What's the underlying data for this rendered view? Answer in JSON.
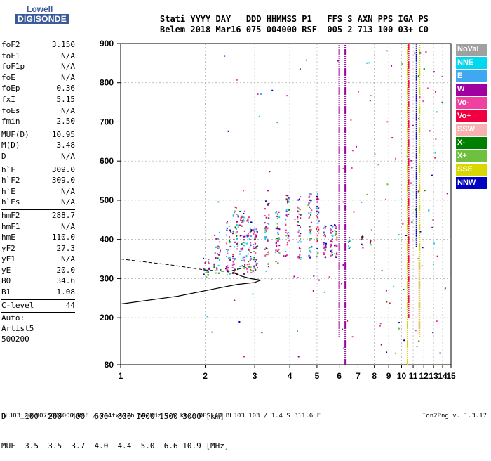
{
  "logo": {
    "top": "Lowell",
    "bottom": "DIGISONDE"
  },
  "header": {
    "line1": "Stati YYYY DAY   DDD HHMMSS P1   FFS S AXN PPS IGA PS",
    "line2": "Belem 2018 Mar16 075 004000 RSF  005 2 713 100 03+ C0"
  },
  "params": {
    "group1": [
      {
        "k": "foF2",
        "v": "3.150"
      },
      {
        "k": "foF1",
        "v": "N/A"
      },
      {
        "k": "foF1p",
        "v": "N/A"
      },
      {
        "k": "foE",
        "v": "N/A"
      },
      {
        "k": "foEp",
        "v": "0.36"
      },
      {
        "k": "fxI",
        "v": "5.15"
      },
      {
        "k": "foEs",
        "v": "N/A"
      },
      {
        "k": "fmin",
        "v": "2.50"
      }
    ],
    "group2": [
      {
        "k": "MUF(D)",
        "v": "10.95"
      },
      {
        "k": "M(D)",
        "v": "3.48"
      },
      {
        "k": "D",
        "v": "N/A"
      }
    ],
    "group3": [
      {
        "k": "h`F",
        "v": "309.0"
      },
      {
        "k": "h`F2",
        "v": "309.0"
      },
      {
        "k": "h`E",
        "v": "N/A"
      },
      {
        "k": "h`Es",
        "v": "N/A"
      }
    ],
    "group4": [
      {
        "k": "hmF2",
        "v": "288.7"
      },
      {
        "k": "hmF1",
        "v": "N/A"
      },
      {
        "k": "hmE",
        "v": "110.0"
      },
      {
        "k": "yF2",
        "v": "27.3"
      },
      {
        "k": "yF1",
        "v": "N/A"
      },
      {
        "k": "yE",
        "v": "20.0"
      },
      {
        "k": "B0",
        "v": "34.6"
      },
      {
        "k": "B1",
        "v": "1.08"
      }
    ],
    "group5": [
      {
        "k": "C-level",
        "v": "44"
      }
    ],
    "extra": [
      "Auto:",
      "Artist5",
      "500200"
    ]
  },
  "dtable": {
    "row1": "D    100  200  400  600  800 1000 1500 3000 [km]",
    "row2": "MUF  3.5  3.5  3.7  4.0  4.4  5.0  6.6 10.9 [MHz]"
  },
  "footer": "BLJ03_2018075004000.RSF / 284fx512h 50 kHz 2.5 km / DPS-4D BLJ03 103 / 1.4 S 311.6 E",
  "version": "Ion2Png v. 1.3.17",
  "legend": [
    {
      "label": "NoVal",
      "color": "#a0a0a0"
    },
    {
      "label": "NNE",
      "color": "#00d8f0"
    },
    {
      "label": "E",
      "color": "#40a8f0"
    },
    {
      "label": "W",
      "color": "#a000a0"
    },
    {
      "label": "Vo-",
      "color": "#f040a0"
    },
    {
      "label": "Vo+",
      "color": "#f00040"
    },
    {
      "label": "SSW",
      "color": "#f8b0b0"
    },
    {
      "label": "X-",
      "color": "#008000"
    },
    {
      "label": "X+",
      "color": "#70c040"
    },
    {
      "label": "SSE",
      "color": "#d8d800"
    },
    {
      "label": "NNW",
      "color": "#0000c0"
    }
  ],
  "chart_data": {
    "type": "scatter",
    "x_ticks": [
      "1",
      "2",
      "3",
      "4",
      "5",
      "6",
      "7",
      "8",
      "9",
      "10",
      "11",
      "12",
      "13",
      "14",
      "15"
    ],
    "y_ticks": [
      "80",
      "200",
      "300",
      "400",
      "500",
      "600",
      "700",
      "800",
      "900"
    ],
    "xlim": [
      1,
      15
    ],
    "ylim": [
      80,
      900
    ],
    "x_scale": "log",
    "grid": "dashed",
    "trace_colors": {
      "ordinary": "#a000a0",
      "vertical_minus": "#f040a0",
      "vertical_plus": "#f00040",
      "east": "#40a8f0",
      "nne": "#00d8f0",
      "sse": "#d8d800",
      "nnw": "#0000c0",
      "x_minus": "#008000",
      "x_plus": "#70c040",
      "ssw": "#f8b0b0"
    },
    "echo_columns": [
      {
        "f": 2.0,
        "h1": 300,
        "h2": 360,
        "density": 20
      },
      {
        "f": 2.2,
        "h1": 300,
        "h2": 420,
        "density": 30
      },
      {
        "f": 2.4,
        "h1": 310,
        "h2": 450,
        "density": 40
      },
      {
        "f": 2.55,
        "h1": 310,
        "h2": 500,
        "density": 50
      },
      {
        "f": 2.7,
        "h1": 310,
        "h2": 480,
        "density": 45
      },
      {
        "f": 2.85,
        "h1": 315,
        "h2": 460,
        "density": 45
      },
      {
        "f": 3.0,
        "h1": 320,
        "h2": 440,
        "density": 40
      },
      {
        "f": 3.3,
        "h1": 330,
        "h2": 500,
        "density": 40
      },
      {
        "f": 3.6,
        "h1": 340,
        "h2": 480,
        "density": 40
      },
      {
        "f": 3.9,
        "h1": 350,
        "h2": 520,
        "density": 35
      },
      {
        "f": 4.3,
        "h1": 350,
        "h2": 520,
        "density": 40
      },
      {
        "f": 4.7,
        "h1": 355,
        "h2": 520,
        "density": 40
      },
      {
        "f": 5.0,
        "h1": 355,
        "h2": 520,
        "density": 35
      },
      {
        "f": 5.3,
        "h1": 355,
        "h2": 440,
        "density": 30
      },
      {
        "f": 5.6,
        "h1": 360,
        "h2": 440,
        "density": 30
      },
      {
        "f": 5.8,
        "h1": 355,
        "h2": 440,
        "density": 25
      },
      {
        "f": 6.5,
        "h1": 370,
        "h2": 420,
        "density": 10
      },
      {
        "f": 7.2,
        "h1": 380,
        "h2": 410,
        "density": 8
      },
      {
        "f": 7.7,
        "h1": 385,
        "h2": 400,
        "density": 6
      }
    ],
    "vertical_lines": [
      {
        "f": 6.0,
        "h1": 150,
        "h2": 900,
        "color": "#a000a0"
      },
      {
        "f": 6.3,
        "h1": 80,
        "h2": 900,
        "color": "#a000a0"
      },
      {
        "f": 10.5,
        "h1": 80,
        "h2": 900,
        "color": "#d8d800"
      },
      {
        "f": 10.6,
        "h1": 200,
        "h2": 900,
        "color": "#f00040"
      },
      {
        "f": 11.3,
        "h1": 380,
        "h2": 900,
        "color": "#0000c0"
      },
      {
        "f": 11.6,
        "h1": 150,
        "h2": 900,
        "color": "#d8d800"
      },
      {
        "f": 11.55,
        "h1": 160,
        "h2": 360,
        "color": "#f8b0b0"
      }
    ],
    "profile": {
      "solid": [
        [
          1,
          235
        ],
        [
          1.6,
          255
        ],
        [
          2.2,
          275
        ],
        [
          2.6,
          285
        ],
        [
          3.0,
          290
        ],
        [
          3.15,
          296
        ],
        [
          2.9,
          300
        ],
        [
          2.7,
          306
        ],
        [
          2.5,
          316
        ]
      ],
      "dashed": [
        [
          1,
          350
        ],
        [
          1.5,
          335
        ],
        [
          2.0,
          322
        ],
        [
          2.4,
          318
        ],
        [
          2.7,
          326
        ],
        [
          2.9,
          330
        ]
      ]
    }
  }
}
